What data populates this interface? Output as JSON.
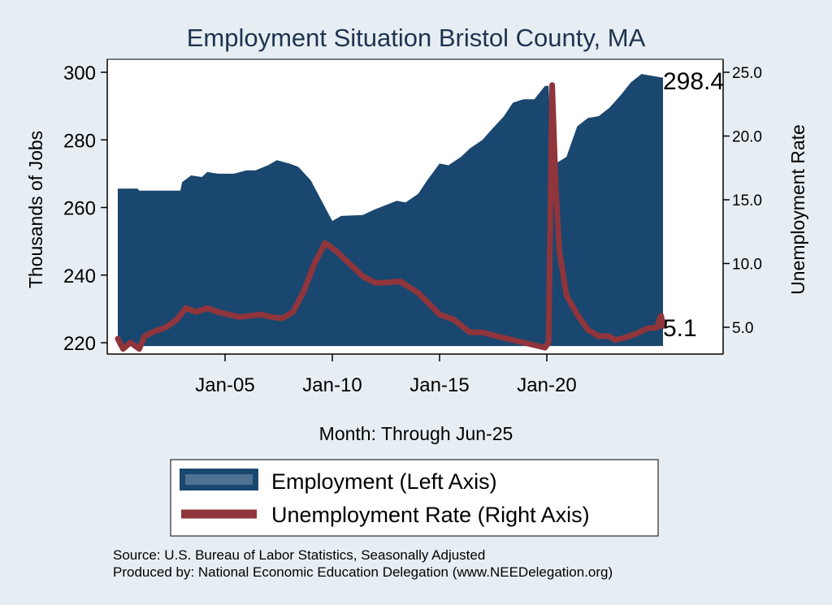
{
  "chart_data": {
    "type": "area+line",
    "title": "Employment Situation Bristol  County, MA",
    "xlabel": "Month: Through Jun-25",
    "ylabel_left": "Thousands of Jobs",
    "ylabel_right": "Unemployment Rate",
    "x_ticks": [
      "Jan-05",
      "Jan-10",
      "Jan-15",
      "Jan-20"
    ],
    "yleft_ticks": [
      "220",
      "240",
      "260",
      "280",
      "300"
    ],
    "yright_ticks": [
      "5.0",
      "10.0",
      "15.0",
      "20.0",
      "25.0"
    ],
    "ylim_left": [
      219,
      298.4
    ],
    "ylim_right": [
      2.5,
      26.5
    ],
    "x_start": "2000-01",
    "x_end": "2025-06",
    "employment": {
      "name": "Employment (Left Axis)",
      "color": "#1a476f",
      "points": [
        [
          "2000-01",
          265.6
        ],
        [
          "2000-12",
          265.6
        ],
        [
          "2001-01",
          265.0
        ],
        [
          "2002-01",
          265.0
        ],
        [
          "2002-12",
          265.0
        ],
        [
          "2003-01",
          267.5
        ],
        [
          "2003-06",
          269.5
        ],
        [
          "2003-12",
          269.0
        ],
        [
          "2004-03",
          270.5
        ],
        [
          "2004-09",
          270.0
        ],
        [
          "2005-06",
          270.0
        ],
        [
          "2006-01",
          271.0
        ],
        [
          "2006-06",
          271.0
        ],
        [
          "2007-01",
          272.5
        ],
        [
          "2007-06",
          274.0
        ],
        [
          "2008-01",
          273.0
        ],
        [
          "2008-06",
          272.0
        ],
        [
          "2009-01",
          268.0
        ],
        [
          "2009-06",
          263.0
        ],
        [
          "2010-01",
          256.0
        ],
        [
          "2010-06",
          257.5
        ],
        [
          "2011-06",
          257.8
        ],
        [
          "2012-01",
          259.5
        ],
        [
          "2012-06",
          260.5
        ],
        [
          "2013-01",
          262.0
        ],
        [
          "2013-06",
          261.5
        ],
        [
          "2014-01",
          264.0
        ],
        [
          "2014-06",
          268.0
        ],
        [
          "2015-01",
          273.0
        ],
        [
          "2015-06",
          272.5
        ],
        [
          "2016-01",
          275.0
        ],
        [
          "2016-06",
          277.5
        ],
        [
          "2017-01",
          280.0
        ],
        [
          "2017-06",
          283.0
        ],
        [
          "2018-01",
          287.0
        ],
        [
          "2018-06",
          291.0
        ],
        [
          "2018-12",
          292.0
        ],
        [
          "2019-06",
          292.0
        ],
        [
          "2019-12",
          296.0
        ],
        [
          "2020-02",
          296.0
        ],
        [
          "2020-04",
          273.0
        ],
        [
          "2020-06",
          273.0
        ],
        [
          "2020-12",
          275.0
        ],
        [
          "2021-06",
          284.0
        ],
        [
          "2021-12",
          286.5
        ],
        [
          "2022-06",
          287.0
        ],
        [
          "2022-12",
          289.5
        ],
        [
          "2023-06",
          293.0
        ],
        [
          "2023-12",
          297.0
        ],
        [
          "2024-06",
          299.5
        ],
        [
          "2025-06",
          298.4
        ]
      ]
    },
    "unemployment": {
      "name": "Unemployment Rate (Right Axis)",
      "color": "#90353b",
      "points": [
        [
          "2000-01",
          4.1
        ],
        [
          "2000-04",
          3.3
        ],
        [
          "2000-08",
          3.8
        ],
        [
          "2001-01",
          3.3
        ],
        [
          "2001-04",
          4.3
        ],
        [
          "2001-10",
          4.7
        ],
        [
          "2002-04",
          5.0
        ],
        [
          "2002-10",
          5.6
        ],
        [
          "2003-03",
          6.5
        ],
        [
          "2003-09",
          6.2
        ],
        [
          "2004-03",
          6.5
        ],
        [
          "2004-09",
          6.2
        ],
        [
          "2005-03",
          6.0
        ],
        [
          "2005-09",
          5.8
        ],
        [
          "2006-03",
          5.9
        ],
        [
          "2006-09",
          6.0
        ],
        [
          "2007-03",
          5.8
        ],
        [
          "2007-09",
          5.7
        ],
        [
          "2008-03",
          6.2
        ],
        [
          "2008-09",
          7.8
        ],
        [
          "2009-03",
          10.0
        ],
        [
          "2009-09",
          11.6
        ],
        [
          "2010-03",
          11.0
        ],
        [
          "2010-09",
          10.2
        ],
        [
          "2011-06",
          9.0
        ],
        [
          "2012-01",
          8.5
        ],
        [
          "2012-06",
          8.5
        ],
        [
          "2013-03",
          8.6
        ],
        [
          "2014-01",
          7.7
        ],
        [
          "2014-06",
          7.0
        ],
        [
          "2015-01",
          6.0
        ],
        [
          "2015-09",
          5.6
        ],
        [
          "2016-06",
          4.6
        ],
        [
          "2017-01",
          4.6
        ],
        [
          "2017-09",
          4.3
        ],
        [
          "2018-06",
          4.0
        ],
        [
          "2019-06",
          3.6
        ],
        [
          "2019-12",
          3.4
        ],
        [
          "2020-02",
          3.8
        ],
        [
          "2020-04",
          24.0
        ],
        [
          "2020-06",
          16.0
        ],
        [
          "2020-08",
          11.0
        ],
        [
          "2020-12",
          7.5
        ],
        [
          "2021-06",
          6.0
        ],
        [
          "2021-12",
          4.8
        ],
        [
          "2022-06",
          4.3
        ],
        [
          "2022-12",
          4.3
        ],
        [
          "2023-03",
          4.0
        ],
        [
          "2023-09",
          4.2
        ],
        [
          "2024-03",
          4.5
        ],
        [
          "2024-09",
          4.9
        ],
        [
          "2025-03",
          5.0
        ],
        [
          "2025-04",
          5.7
        ],
        [
          "2025-05",
          5.9
        ],
        [
          "2025-06",
          5.1
        ]
      ]
    },
    "end_labels": {
      "employment": "298.4",
      "unemployment": "5.1"
    },
    "legend": {
      "position": "bottom",
      "items": [
        "Employment (Left Axis)",
        "Unemployment Rate (Right Axis)"
      ]
    }
  },
  "source": {
    "line1": "Source: U.S. Bureau of Labor Statistics, Seasonally Adjusted",
    "line2": "Produced by: National Economic Education Delegation (www.NEEDelegation.org)"
  }
}
